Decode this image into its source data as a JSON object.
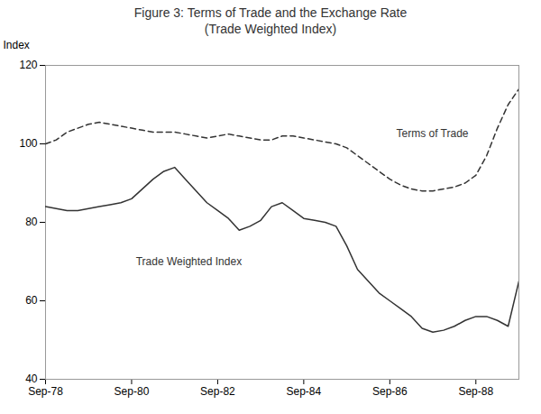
{
  "chart_data": {
    "type": "line",
    "title": "Figure 3: Terms of Trade and the Exchange Rate",
    "subtitle": "(Trade Weighted Index)",
    "y_label": "Index",
    "xlim": [
      0,
      11
    ],
    "xticks": [
      {
        "value": 0,
        "label": "Sep-78"
      },
      {
        "value": 2,
        "label": "Sep-80"
      },
      {
        "value": 4,
        "label": "Sep-82"
      },
      {
        "value": 6,
        "label": "Sep-84"
      },
      {
        "value": 8,
        "label": "Sep-86"
      },
      {
        "value": 10,
        "label": "Sep-88"
      }
    ],
    "ylim": [
      40,
      120
    ],
    "yticks": [
      40,
      60,
      80,
      100,
      120
    ],
    "grid": false,
    "series": [
      {
        "name": "Terms of Trade",
        "color": "#333333",
        "line_style": "dashed",
        "x": [
          0,
          0.25,
          0.5,
          0.75,
          1.0,
          1.25,
          1.5,
          1.75,
          2.0,
          2.25,
          2.5,
          2.75,
          3.0,
          3.25,
          3.5,
          3.75,
          4.0,
          4.25,
          4.5,
          4.75,
          5.0,
          5.25,
          5.5,
          5.75,
          6.0,
          6.25,
          6.5,
          6.75,
          7.0,
          7.25,
          7.5,
          7.75,
          8.0,
          8.25,
          8.5,
          8.75,
          9.0,
          9.25,
          9.5,
          9.75,
          10.0,
          10.25,
          10.5,
          10.75,
          11.0
        ],
        "values": [
          100,
          101,
          103,
          104,
          105,
          105.5,
          105,
          104.5,
          104,
          103.5,
          103,
          103,
          103,
          102.5,
          102,
          101.5,
          102,
          102.5,
          102,
          101.5,
          101,
          101,
          102,
          102,
          101.5,
          101,
          100.5,
          100,
          99,
          97,
          95,
          93,
          91,
          89.5,
          88.5,
          88,
          88,
          88.5,
          89,
          90,
          92,
          97,
          104,
          110,
          114
        ]
      },
      {
        "name": "Trade Weighted Index",
        "color": "#333333",
        "line_style": "solid",
        "x": [
          0,
          0.25,
          0.5,
          0.75,
          1.0,
          1.25,
          1.5,
          1.75,
          2.0,
          2.5,
          2.75,
          3.0,
          3.25,
          3.5,
          3.75,
          4.0,
          4.25,
          4.5,
          4.75,
          5.0,
          5.25,
          5.5,
          5.75,
          6.0,
          6.25,
          6.5,
          6.75,
          7.0,
          7.25,
          7.5,
          7.75,
          8.0,
          8.25,
          8.5,
          8.75,
          9.0,
          9.25,
          9.5,
          9.75,
          10.0,
          10.25,
          10.5,
          10.75,
          11.0
        ],
        "values": [
          84,
          83.5,
          83,
          83,
          83.5,
          84,
          84.5,
          85,
          86,
          91,
          93,
          94,
          91,
          88,
          85,
          83,
          81,
          78,
          79,
          80.5,
          84,
          85,
          83,
          81,
          80.5,
          80,
          79,
          74,
          68,
          65,
          62,
          60,
          58,
          56,
          53,
          52,
          52.5,
          53.5,
          55,
          56,
          56,
          55,
          53.5,
          65
        ]
      }
    ],
    "annotations": [
      {
        "text": "Terms of Trade",
        "x": 8.15,
        "y": 102.5,
        "color": "#333333"
      },
      {
        "text": "Trade Weighted Index",
        "x": 2.1,
        "y": 70,
        "color": "#333333"
      }
    ]
  }
}
